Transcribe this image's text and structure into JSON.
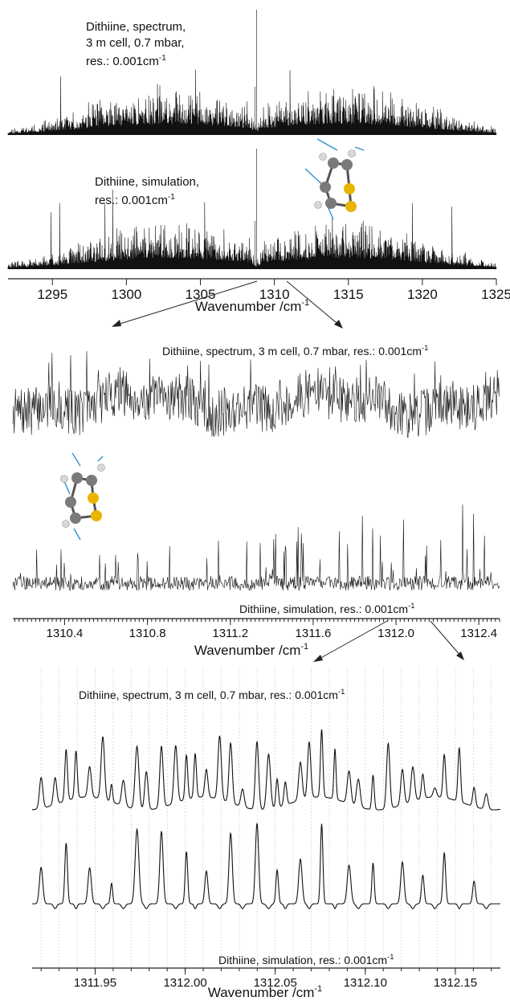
{
  "chart_data": [
    {
      "type": "line",
      "panel": "full-range",
      "xlabel": "Wavenumber /cm",
      "xlabel_sup": "-1",
      "xlim": [
        1292,
        1325
      ],
      "x_ticks": [
        1295,
        1300,
        1305,
        1310,
        1315,
        1320,
        1325
      ],
      "series": [
        {
          "name": "Dithiine, spectrum, 3 m cell, 0.7 mbar, res.: 0.001cm⁻¹",
          "label_lines": [
            "Dithiine, spectrum,",
            "3 m cell, 0.7 mbar,",
            "res.: 0.001cm"
          ],
          "label_sup": "-1",
          "band_center": 1308.8
        },
        {
          "name": "Dithiine, simulation, res.: 0.001cm⁻¹",
          "label_lines": [
            "Dithiine, simulation,",
            "res.: 0.001cm"
          ],
          "label_sup": "-1",
          "band_center": 1308.8
        }
      ]
    },
    {
      "type": "line",
      "panel": "zoom-1",
      "xlabel": "Wavenumber /cm",
      "xlabel_sup": "-1",
      "xlim": [
        1310.15,
        1312.5
      ],
      "x_ticks": [
        1310.4,
        1310.8,
        1311.2,
        1311.6,
        1312.0,
        1312.4
      ],
      "x_tick_labels": [
        "1310.4",
        "1310.8",
        "1311.2",
        "1311.6",
        "1312.0",
        "1312.4"
      ],
      "series": [
        {
          "name": "Dithiine, spectrum, 3 m cell, 0.7 mbar, res.: 0.001cm⁻¹",
          "label": "Dithiine, spectrum, 3 m cell, 0.7 mbar, res.: 0.001cm",
          "label_sup": "-1"
        },
        {
          "name": "Dithiine, simulation, res.: 0.001cm⁻¹",
          "label": "Dithiine, simulation, res.: 0.001cm",
          "label_sup": "-1"
        }
      ]
    },
    {
      "type": "line",
      "panel": "zoom-2",
      "xlabel": "Wavenumber /cm",
      "xlabel_sup": "-1",
      "xlim": [
        1311.915,
        1312.175
      ],
      "x_ticks": [
        1311.95,
        1312.0,
        1312.05,
        1312.1,
        1312.15
      ],
      "x_tick_labels": [
        "1311.95",
        "1312.00",
        "1312.05",
        "1312.10",
        "1312.15"
      ],
      "grid": "vertical dotted",
      "series": [
        {
          "name": "Dithiine, spectrum, 3 m cell, 0.7 mbar, res.: 0.001cm⁻¹",
          "label": "Dithiine, spectrum, 3 m cell, 0.7 mbar, res.: 0.001cm",
          "label_sup": "-1"
        },
        {
          "name": "Dithiine, simulation, res.: 0.001cm⁻¹",
          "label": "Dithiine, simulation, res.: 0.001cm",
          "label_sup": "-1"
        }
      ]
    }
  ],
  "colors": {
    "trace": "#111111",
    "sulfur": "#e8b400",
    "carbon": "#7a7a7a",
    "hydrogen": "#d8d8d8",
    "vector": "#2f8fd0"
  }
}
